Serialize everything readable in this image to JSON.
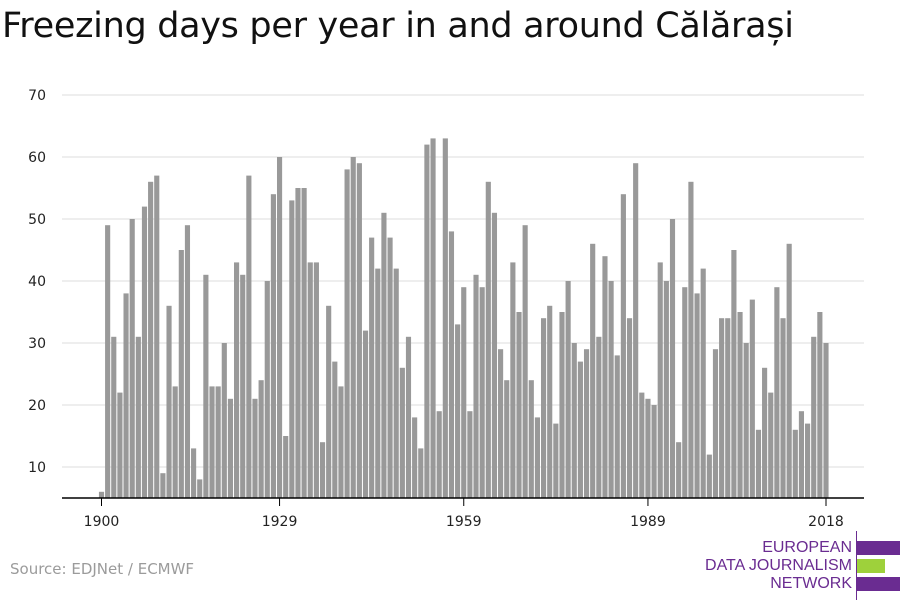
{
  "title": "Freezing days per year in and around Călărași",
  "source": "Source: EDJNet / ECMWF",
  "logo": {
    "line1": "EUROPEAN",
    "line2": "DATA JOURNALISM",
    "line3": "NETWORK",
    "text_color": "#6a2c91",
    "purple": "#6a2c91",
    "green": "#9ed13b"
  },
  "colors": {
    "bar": "#999999",
    "grid": "#dddddd",
    "axis": "#000000"
  },
  "chart_data": {
    "type": "bar",
    "title": "Freezing days per year in and around Călărași",
    "xlabel": "",
    "ylabel": "",
    "x_start": 1900,
    "x": [
      1900,
      1901,
      1902,
      1903,
      1904,
      1905,
      1906,
      1907,
      1908,
      1909,
      1910,
      1911,
      1912,
      1913,
      1914,
      1915,
      1916,
      1917,
      1918,
      1919,
      1920,
      1921,
      1922,
      1923,
      1924,
      1925,
      1926,
      1927,
      1928,
      1929,
      1930,
      1931,
      1932,
      1933,
      1934,
      1935,
      1936,
      1937,
      1938,
      1939,
      1940,
      1941,
      1942,
      1943,
      1944,
      1945,
      1946,
      1947,
      1948,
      1949,
      1950,
      1951,
      1952,
      1953,
      1954,
      1955,
      1956,
      1957,
      1958,
      1959,
      1960,
      1961,
      1962,
      1963,
      1964,
      1965,
      1966,
      1967,
      1968,
      1969,
      1970,
      1971,
      1972,
      1973,
      1974,
      1975,
      1976,
      1977,
      1978,
      1979,
      1980,
      1981,
      1982,
      1983,
      1984,
      1985,
      1986,
      1987,
      1988,
      1989,
      1990,
      1991,
      1992,
      1993,
      1994,
      1995,
      1996,
      1997,
      1998,
      1999,
      2000,
      2001,
      2002,
      2003,
      2004,
      2005,
      2006,
      2007,
      2008,
      2009,
      2010,
      2011,
      2012,
      2013,
      2014,
      2015,
      2016,
      2017,
      2018
    ],
    "values": [
      6,
      49,
      31,
      22,
      38,
      50,
      31,
      52,
      56,
      57,
      9,
      36,
      23,
      45,
      49,
      13,
      8,
      41,
      23,
      23,
      30,
      21,
      43,
      41,
      57,
      21,
      24,
      40,
      54,
      60,
      15,
      53,
      55,
      55,
      43,
      43,
      14,
      36,
      27,
      23,
      58,
      60,
      59,
      32,
      47,
      42,
      51,
      47,
      42,
      26,
      31,
      18,
      13,
      62,
      63,
      19,
      63,
      48,
      33,
      39,
      19,
      41,
      39,
      56,
      51,
      29,
      24,
      43,
      35,
      49,
      24,
      18,
      34,
      36,
      17,
      35,
      40,
      30,
      27,
      29,
      46,
      31,
      44,
      40,
      28,
      54,
      34,
      59,
      22,
      21,
      20,
      43,
      40,
      50,
      14,
      39,
      56,
      38,
      42,
      12,
      29,
      34,
      34,
      45,
      35,
      30,
      37,
      16,
      26,
      22,
      39,
      34,
      46,
      16,
      19,
      17,
      31,
      35,
      30
    ],
    "x_ticks": [
      1900,
      1929,
      1959,
      1989,
      2018
    ],
    "y_ticks": [
      10,
      20,
      30,
      40,
      50,
      60,
      70
    ],
    "ylim": [
      5,
      70
    ],
    "grid": true,
    "legend": "none"
  }
}
